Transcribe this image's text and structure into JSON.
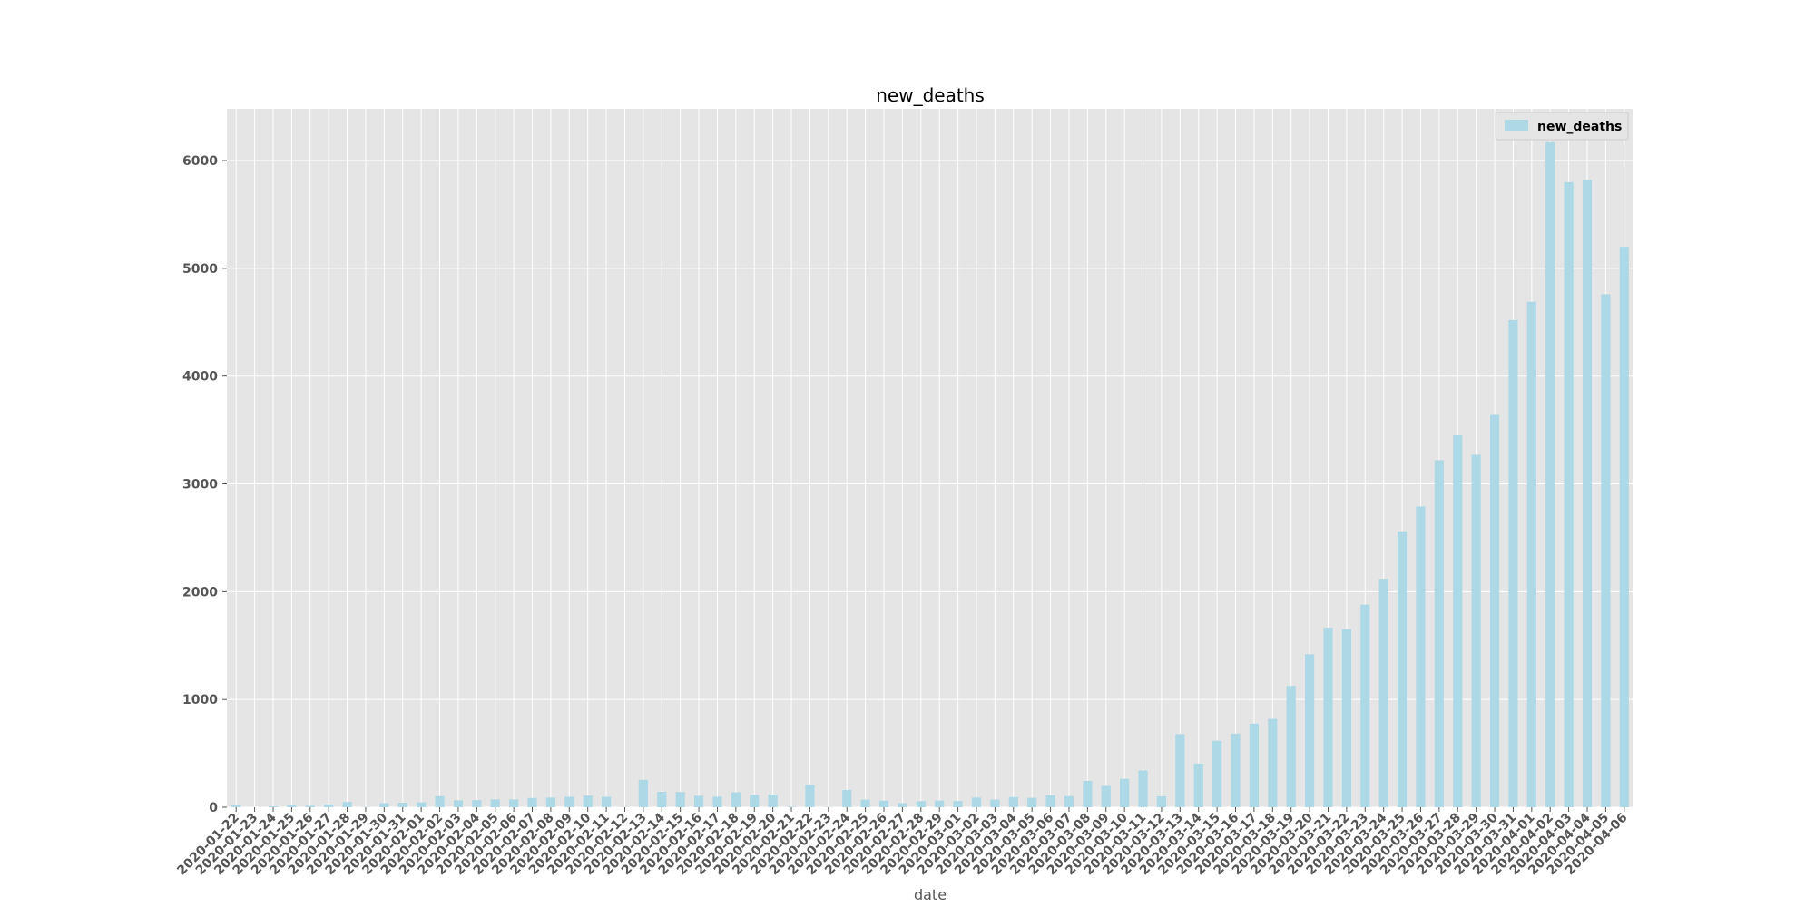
{
  "chart_data": {
    "type": "bar",
    "title": "new_deaths",
    "xlabel": "date",
    "ylabel": "",
    "ylim": [
      0,
      6480
    ],
    "yticks": [
      0,
      1000,
      2000,
      3000,
      4000,
      5000,
      6000
    ],
    "grid": true,
    "legend_position": "top-right",
    "bar_color": "#add8e6",
    "plot_background": "#e5e5e5",
    "categories": [
      "2020-01-22",
      "2020-01-23",
      "2020-01-24",
      "2020-01-25",
      "2020-01-26",
      "2020-01-27",
      "2020-01-28",
      "2020-01-29",
      "2020-01-30",
      "2020-01-31",
      "2020-02-01",
      "2020-02-02",
      "2020-02-03",
      "2020-02-04",
      "2020-02-05",
      "2020-02-06",
      "2020-02-07",
      "2020-02-08",
      "2020-02-09",
      "2020-02-10",
      "2020-02-11",
      "2020-02-12",
      "2020-02-13",
      "2020-02-14",
      "2020-02-15",
      "2020-02-16",
      "2020-02-17",
      "2020-02-18",
      "2020-02-19",
      "2020-02-20",
      "2020-02-21",
      "2020-02-22",
      "2020-02-23",
      "2020-02-24",
      "2020-02-25",
      "2020-02-26",
      "2020-02-27",
      "2020-02-28",
      "2020-02-29",
      "2020-03-01",
      "2020-03-02",
      "2020-03-03",
      "2020-03-04",
      "2020-03-05",
      "2020-03-06",
      "2020-03-07",
      "2020-03-08",
      "2020-03-09",
      "2020-03-10",
      "2020-03-11",
      "2020-03-12",
      "2020-03-13",
      "2020-03-14",
      "2020-03-15",
      "2020-03-16",
      "2020-03-17",
      "2020-03-18",
      "2020-03-19",
      "2020-03-20",
      "2020-03-21",
      "2020-03-22",
      "2020-03-23",
      "2020-03-24",
      "2020-03-25",
      "2020-03-26",
      "2020-03-27",
      "2020-03-28",
      "2020-03-29",
      "2020-03-30",
      "2020-03-31",
      "2020-04-01",
      "2020-04-02",
      "2020-04-03",
      "2020-04-04",
      "2020-04-05",
      "2020-04-06"
    ],
    "series": [
      {
        "name": "new_deaths",
        "values": [
          17,
          0,
          8,
          16,
          14,
          26,
          49,
          2,
          38,
          42,
          46,
          103,
          64,
          66,
          73,
          73,
          86,
          89,
          97,
          108,
          97,
          2,
          254,
          143,
          142,
          106,
          98,
          139,
          115,
          118,
          4,
          207,
          2,
          160,
          71,
          61,
          38,
          56,
          62,
          58,
          90,
          71,
          94,
          87,
          111,
          103,
          244,
          198,
          264,
          341,
          101,
          679,
          405,
          617,
          683,
          776,
          820,
          1126,
          1420,
          1667,
          1652,
          1880,
          2120,
          2560,
          2790,
          3220,
          3450,
          3270,
          3640,
          4520,
          4690,
          6170,
          5800,
          5820,
          4760,
          5200
        ]
      }
    ]
  }
}
